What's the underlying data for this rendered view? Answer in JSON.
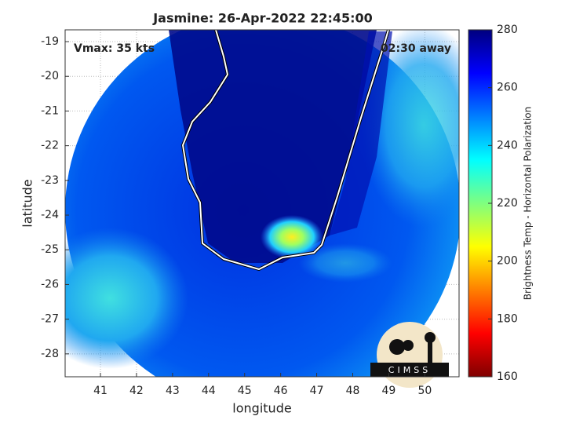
{
  "chart_data": {
    "type": "image",
    "title": "Jasmine: 26-Apr-2022 22:45:00",
    "annotations": [
      "Vmax: 35 kts",
      "02:30 away"
    ],
    "xlabel": "longitude",
    "ylabel": "latitude",
    "xlim": [
      40.02,
      50.95
    ],
    "xticks": [
      41,
      42,
      43,
      44,
      45,
      46,
      47,
      48,
      49,
      50
    ],
    "ylim": [
      -28.66,
      -18.66
    ],
    "yticks": [
      -19,
      -20,
      -21,
      -22,
      -23,
      -24,
      -25,
      -26,
      -27,
      -28
    ],
    "grid": true,
    "colorbar": {
      "label": "Brightness Temp - Horizontal Polarization",
      "lim": [
        160,
        280
      ],
      "ticks": [
        160,
        180,
        200,
        220,
        240,
        260,
        280
      ],
      "colormap": [
        "#7f0000",
        "#ff0000",
        "#ff7f00",
        "#ffff00",
        "#7fff7f",
        "#00ffff",
        "#007fff",
        "#0000ff",
        "#00007f"
      ]
    },
    "logo": "CIMSS"
  }
}
